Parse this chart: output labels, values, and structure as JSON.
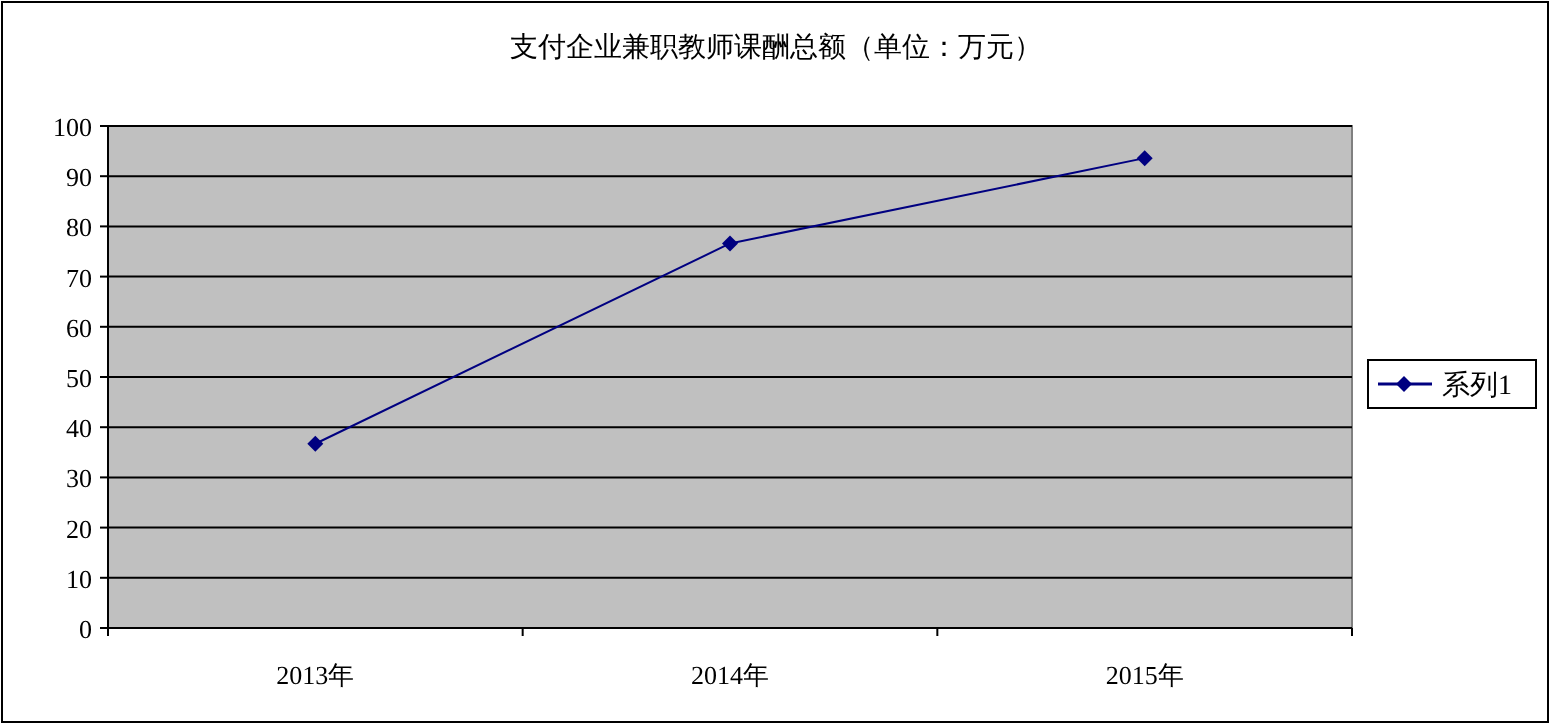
{
  "chart_data": {
    "type": "line",
    "title": "支付企业兼职教师课酬总额（单位：万元）",
    "categories": [
      "2013年",
      "2014年",
      "2015年"
    ],
    "series": [
      {
        "name": "系列1",
        "color": "#000080",
        "values": [
          36.7,
          76.6,
          93.6
        ]
      }
    ],
    "ylim": [
      0,
      100
    ],
    "yticks": [
      0,
      10,
      20,
      30,
      40,
      50,
      60,
      70,
      80,
      90,
      100
    ],
    "grid": "y",
    "legend": "right",
    "marker": "diamond",
    "line_style": "solid"
  }
}
